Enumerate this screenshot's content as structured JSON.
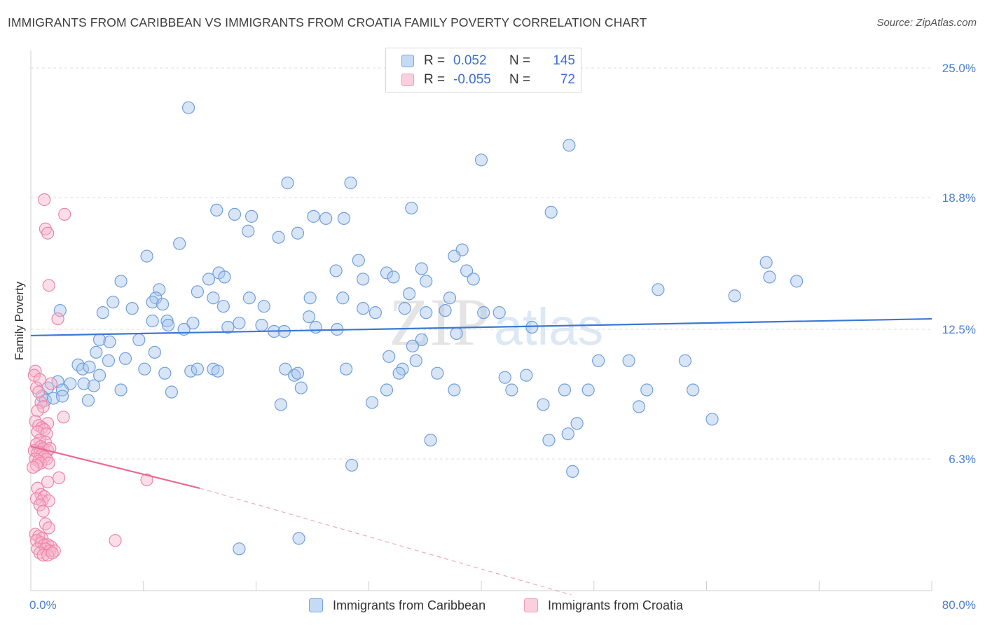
{
  "title": "IMMIGRANTS FROM CARIBBEAN VS IMMIGRANTS FROM CROATIA FAMILY POVERTY CORRELATION CHART",
  "source": "Source: ZipAtlas.com",
  "watermark": {
    "zip": "ZIP",
    "atlas": "atlas"
  },
  "legend": {
    "rows": [
      {
        "r_label": "R =",
        "r_value": "0.052",
        "n_label": "N =",
        "n_value": "145",
        "color": "#9fc1ee"
      },
      {
        "r_label": "R =",
        "r_value": "-0.055",
        "n_label": "N =",
        "n_value": "72",
        "color": "#f5aac3"
      }
    ]
  },
  "bottom_legend": {
    "caribbean": "Immigrants from Caribbean",
    "croatia": "Immigrants from Croatia"
  },
  "colors": {
    "caribbean_fill": "#a8c6ee",
    "caribbean_stroke": "#6f9fdc",
    "caribbean_line": "#3a78d4",
    "croatia_fill": "#f7b6cb",
    "croatia_stroke": "#ee84a8",
    "croatia_line": "#e86a94",
    "grid": "#dcdcdc",
    "tick_label": "#4a7fd0"
  },
  "chart_data": {
    "type": "scatter",
    "xlabel": "",
    "ylabel": "Family Poverty",
    "xlim": [
      0,
      80
    ],
    "ylim": [
      0,
      25.9
    ],
    "x_tick_labels": [
      {
        "value": 0,
        "label": "0.0%"
      },
      {
        "value": 80,
        "label": "80.0%"
      }
    ],
    "y_tick_labels": [
      {
        "value": 6.3,
        "label": "6.3%"
      },
      {
        "value": 12.5,
        "label": "12.5%"
      },
      {
        "value": 18.8,
        "label": "18.8%"
      },
      {
        "value": 25.0,
        "label": "25.0%"
      }
    ],
    "grid": "horizontal-dashed",
    "legend_placement": "top-center",
    "series": [
      {
        "name": "Immigrants from Caribbean",
        "trend": {
          "x": [
            0,
            80
          ],
          "y": [
            12.2,
            13.0
          ],
          "style": "solid"
        },
        "points": [
          [
            14.0,
            23.1
          ],
          [
            40.0,
            20.6
          ],
          [
            47.8,
            21.3
          ],
          [
            22.8,
            19.5
          ],
          [
            28.4,
            19.5
          ],
          [
            33.8,
            18.3
          ],
          [
            46.2,
            18.1
          ],
          [
            16.5,
            18.2
          ],
          [
            18.1,
            18.0
          ],
          [
            19.6,
            17.9
          ],
          [
            25.1,
            17.9
          ],
          [
            26.2,
            17.8
          ],
          [
            27.8,
            17.8
          ],
          [
            19.3,
            17.2
          ],
          [
            22.0,
            16.9
          ],
          [
            23.7,
            17.1
          ],
          [
            13.2,
            16.6
          ],
          [
            10.3,
            16.0
          ],
          [
            38.3,
            16.3
          ],
          [
            37.6,
            16.0
          ],
          [
            29.1,
            15.8
          ],
          [
            34.7,
            15.4
          ],
          [
            38.7,
            15.3
          ],
          [
            31.6,
            15.2
          ],
          [
            27.1,
            15.3
          ],
          [
            16.7,
            15.2
          ],
          [
            17.2,
            15.0
          ],
          [
            15.8,
            14.9
          ],
          [
            29.5,
            14.9
          ],
          [
            32.2,
            15.0
          ],
          [
            39.3,
            14.9
          ],
          [
            35.1,
            14.8
          ],
          [
            8.0,
            14.8
          ],
          [
            11.4,
            14.4
          ],
          [
            14.8,
            14.3
          ],
          [
            55.7,
            14.4
          ],
          [
            65.3,
            15.7
          ],
          [
            65.6,
            15.0
          ],
          [
            68.0,
            14.8
          ],
          [
            62.5,
            14.1
          ],
          [
            11.1,
            14.0
          ],
          [
            24.8,
            14.0
          ],
          [
            27.7,
            14.0
          ],
          [
            33.6,
            14.2
          ],
          [
            37.2,
            14.0
          ],
          [
            16.2,
            14.0
          ],
          [
            19.4,
            14.0
          ],
          [
            7.3,
            13.8
          ],
          [
            10.8,
            13.8
          ],
          [
            11.7,
            13.7
          ],
          [
            9.0,
            13.5
          ],
          [
            17.1,
            13.6
          ],
          [
            20.7,
            13.6
          ],
          [
            29.5,
            13.5
          ],
          [
            36.8,
            13.4
          ],
          [
            6.4,
            13.3
          ],
          [
            2.6,
            13.4
          ],
          [
            30.6,
            13.3
          ],
          [
            33.2,
            13.5
          ],
          [
            35.1,
            13.3
          ],
          [
            40.2,
            13.3
          ],
          [
            41.6,
            13.3
          ],
          [
            24.7,
            13.1
          ],
          [
            10.8,
            12.9
          ],
          [
            12.1,
            12.9
          ],
          [
            14.4,
            12.8
          ],
          [
            17.5,
            12.6
          ],
          [
            18.5,
            12.8
          ],
          [
            20.5,
            12.7
          ],
          [
            25.3,
            12.6
          ],
          [
            21.6,
            12.4
          ],
          [
            27.2,
            12.5
          ],
          [
            13.6,
            12.5
          ],
          [
            12.2,
            12.7
          ],
          [
            22.5,
            12.4
          ],
          [
            44.5,
            12.6
          ],
          [
            37.8,
            12.3
          ],
          [
            34.7,
            12.0
          ],
          [
            6.1,
            12.0
          ],
          [
            7.0,
            11.9
          ],
          [
            9.6,
            12.0
          ],
          [
            33.9,
            11.7
          ],
          [
            11.0,
            11.4
          ],
          [
            5.8,
            11.4
          ],
          [
            31.8,
            11.2
          ],
          [
            34.2,
            11.0
          ],
          [
            50.4,
            11.0
          ],
          [
            53.1,
            11.0
          ],
          [
            6.9,
            11.0
          ],
          [
            8.4,
            11.1
          ],
          [
            58.1,
            11.0
          ],
          [
            4.2,
            10.8
          ],
          [
            4.6,
            10.6
          ],
          [
            5.2,
            10.7
          ],
          [
            10.1,
            10.6
          ],
          [
            14.2,
            10.5
          ],
          [
            14.8,
            10.6
          ],
          [
            16.2,
            10.6
          ],
          [
            28.0,
            10.6
          ],
          [
            33.0,
            10.6
          ],
          [
            32.7,
            10.4
          ],
          [
            36.1,
            10.4
          ],
          [
            11.9,
            10.4
          ],
          [
            16.6,
            10.5
          ],
          [
            22.6,
            10.6
          ],
          [
            23.4,
            10.3
          ],
          [
            23.7,
            10.4
          ],
          [
            6.1,
            10.3
          ],
          [
            42.1,
            10.2
          ],
          [
            44.0,
            10.3
          ],
          [
            2.4,
            10.0
          ],
          [
            3.5,
            9.9
          ],
          [
            4.7,
            9.9
          ],
          [
            5.6,
            9.8
          ],
          [
            1.5,
            9.7
          ],
          [
            2.8,
            9.6
          ],
          [
            8.0,
            9.6
          ],
          [
            12.5,
            9.5
          ],
          [
            24.0,
            9.7
          ],
          [
            31.6,
            9.6
          ],
          [
            37.6,
            9.6
          ],
          [
            42.7,
            9.6
          ],
          [
            47.4,
            9.6
          ],
          [
            49.5,
            9.6
          ],
          [
            54.7,
            9.6
          ],
          [
            58.8,
            9.6
          ],
          [
            1.0,
            9.3
          ],
          [
            1.3,
            9.1
          ],
          [
            2.0,
            9.2
          ],
          [
            2.8,
            9.3
          ],
          [
            5.1,
            9.1
          ],
          [
            22.2,
            8.9
          ],
          [
            30.3,
            9.0
          ],
          [
            45.5,
            8.9
          ],
          [
            54.0,
            8.8
          ],
          [
            60.5,
            8.2
          ],
          [
            48.5,
            8.0
          ],
          [
            47.7,
            7.5
          ],
          [
            35.5,
            7.2
          ],
          [
            46.0,
            7.2
          ],
          [
            28.5,
            6.0
          ],
          [
            23.8,
            2.5
          ],
          [
            18.5,
            2.0
          ],
          [
            48.1,
            5.7
          ]
        ]
      },
      {
        "name": "Immigrants from Croatia",
        "trend": {
          "x": [
            0,
            15.0,
            48.0
          ],
          "y": [
            6.9,
            4.9,
            -0.2
          ],
          "style": "solid-then-dashed"
        },
        "points": [
          [
            1.2,
            18.7
          ],
          [
            3.0,
            18.0
          ],
          [
            1.3,
            17.3
          ],
          [
            1.5,
            17.1
          ],
          [
            1.6,
            14.6
          ],
          [
            2.4,
            13.0
          ],
          [
            0.4,
            10.5
          ],
          [
            0.3,
            10.3
          ],
          [
            0.8,
            10.1
          ],
          [
            1.8,
            9.9
          ],
          [
            0.5,
            9.7
          ],
          [
            0.7,
            9.5
          ],
          [
            0.9,
            9.0
          ],
          [
            1.1,
            8.8
          ],
          [
            0.6,
            8.6
          ],
          [
            2.9,
            8.3
          ],
          [
            0.4,
            8.1
          ],
          [
            1.5,
            8.0
          ],
          [
            0.7,
            7.9
          ],
          [
            1.0,
            7.8
          ],
          [
            1.2,
            7.7
          ],
          [
            0.6,
            7.6
          ],
          [
            1.4,
            7.5
          ],
          [
            0.8,
            7.2
          ],
          [
            1.3,
            7.1
          ],
          [
            0.5,
            7.0
          ],
          [
            0.9,
            6.9
          ],
          [
            1.1,
            6.8
          ],
          [
            1.5,
            6.7
          ],
          [
            1.7,
            6.8
          ],
          [
            0.3,
            6.7
          ],
          [
            0.6,
            6.6
          ],
          [
            0.8,
            6.6
          ],
          [
            1.0,
            6.5
          ],
          [
            1.2,
            6.4
          ],
          [
            1.4,
            6.3
          ],
          [
            0.4,
            6.3
          ],
          [
            0.7,
            6.2
          ],
          [
            0.9,
            6.1
          ],
          [
            1.6,
            6.1
          ],
          [
            0.5,
            6.0
          ],
          [
            0.2,
            5.9
          ],
          [
            2.5,
            5.4
          ],
          [
            10.3,
            5.3
          ],
          [
            1.5,
            5.2
          ],
          [
            0.6,
            4.9
          ],
          [
            0.9,
            4.6
          ],
          [
            1.2,
            4.5
          ],
          [
            0.5,
            4.4
          ],
          [
            1.0,
            4.3
          ],
          [
            1.6,
            4.3
          ],
          [
            0.8,
            4.1
          ],
          [
            1.1,
            3.8
          ],
          [
            1.3,
            3.2
          ],
          [
            1.6,
            3.0
          ],
          [
            0.4,
            2.7
          ],
          [
            0.7,
            2.6
          ],
          [
            1.0,
            2.5
          ],
          [
            0.5,
            2.4
          ],
          [
            0.9,
            2.3
          ],
          [
            1.2,
            2.2
          ],
          [
            1.5,
            2.2
          ],
          [
            1.8,
            2.1
          ],
          [
            0.6,
            2.0
          ],
          [
            1.3,
            2.0
          ],
          [
            1.7,
            1.9
          ],
          [
            2.1,
            1.9
          ],
          [
            0.8,
            1.8
          ],
          [
            1.1,
            1.7
          ],
          [
            1.5,
            1.7
          ],
          [
            1.9,
            1.8
          ],
          [
            7.5,
            2.4
          ]
        ]
      }
    ]
  }
}
